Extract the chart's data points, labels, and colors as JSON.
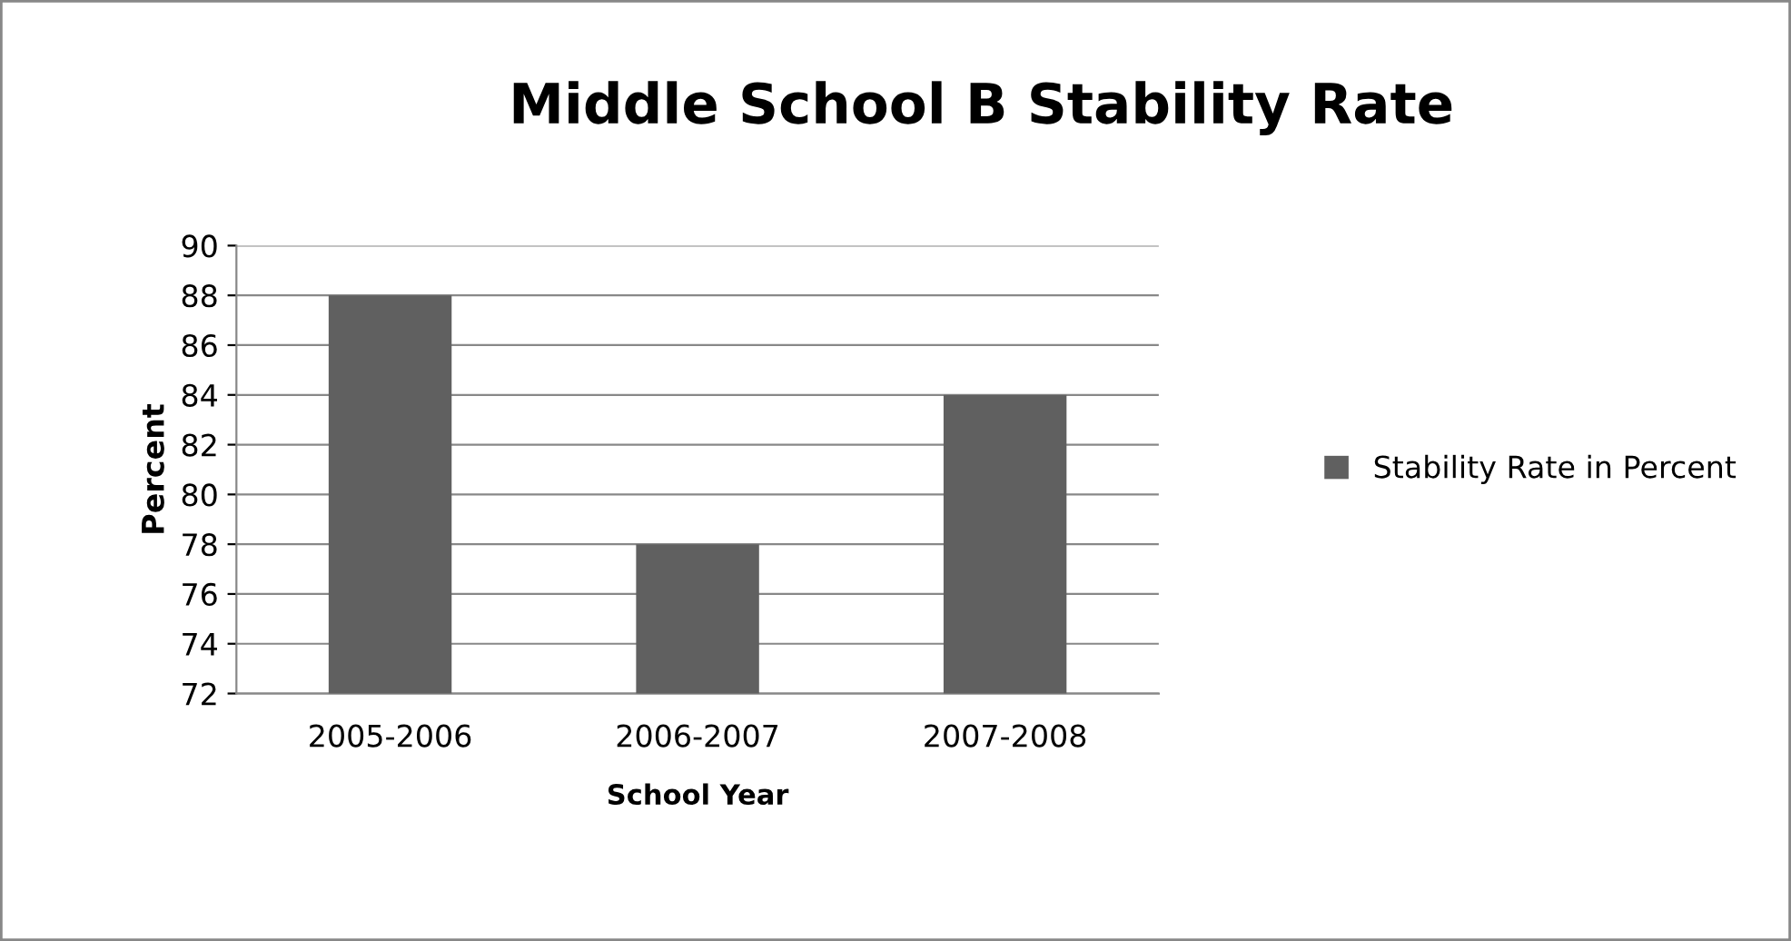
{
  "chart_data": {
    "type": "bar",
    "title": "Middle School B Stability Rate",
    "xlabel": "School Year",
    "ylabel": "Percent",
    "categories": [
      "2005-2006",
      "2006-2007",
      "2007-2008"
    ],
    "series": [
      {
        "name": "Stability Rate in Percent",
        "color": "#606060",
        "values": [
          88,
          78,
          84
        ]
      }
    ],
    "ylim": [
      72,
      90
    ],
    "yticks": [
      72,
      74,
      76,
      78,
      80,
      82,
      84,
      86,
      88,
      90
    ],
    "grid": "y",
    "legend": "right"
  }
}
